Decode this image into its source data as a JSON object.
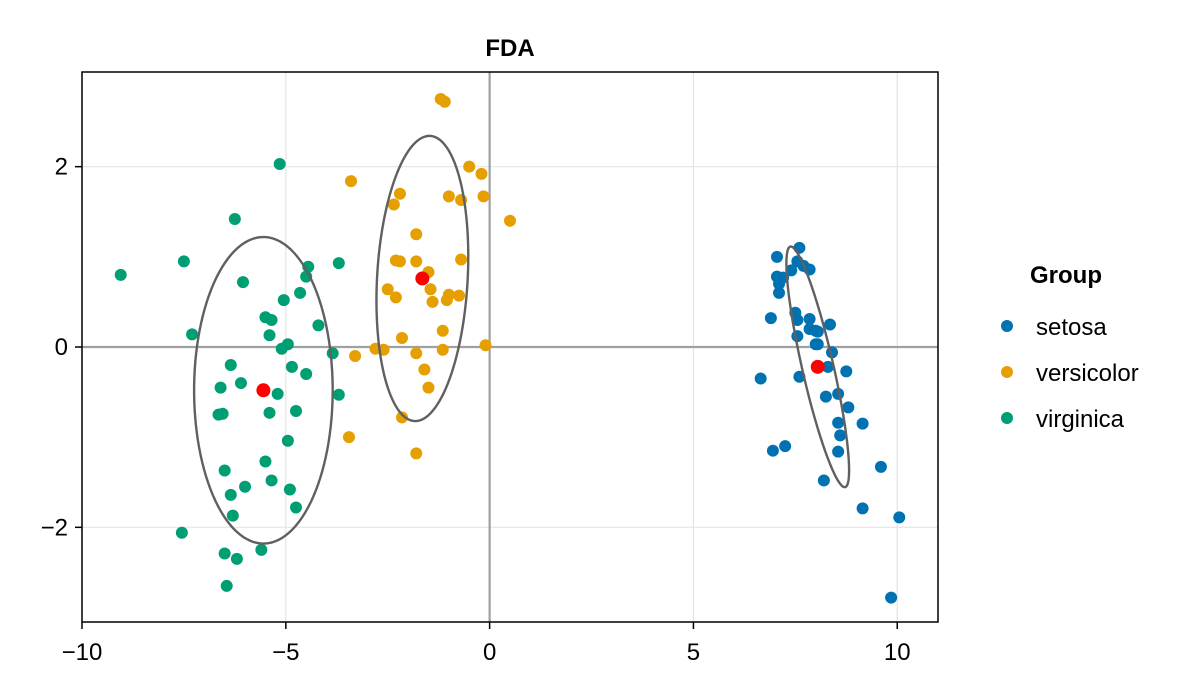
{
  "chart_data": {
    "type": "scatter",
    "title": "FDA",
    "xlabel": "",
    "ylabel": "",
    "xlim": [
      -10,
      11
    ],
    "ylim": [
      -3.05,
      3.05
    ],
    "x_ticks": [
      -10,
      -5,
      0,
      5,
      10
    ],
    "y_ticks": [
      -2,
      0,
      2
    ],
    "grid": true,
    "zero_lines": true,
    "legend": {
      "title": "Group",
      "placement": "right"
    },
    "series": [
      {
        "name": "setosa",
        "color": "#0072B2",
        "points": [
          [
            7.6,
            1.1
          ],
          [
            7.05,
            1.0
          ],
          [
            7.05,
            0.78
          ],
          [
            7.2,
            0.77
          ],
          [
            7.1,
            0.7
          ],
          [
            7.1,
            0.6
          ],
          [
            7.4,
            0.85
          ],
          [
            7.55,
            0.95
          ],
          [
            7.7,
            0.9
          ],
          [
            7.85,
            0.86
          ],
          [
            6.9,
            0.32
          ],
          [
            7.5,
            0.38
          ],
          [
            7.55,
            0.3
          ],
          [
            7.85,
            0.31
          ],
          [
            7.85,
            0.2
          ],
          [
            8.0,
            0.18
          ],
          [
            8.05,
            0.17
          ],
          [
            8.35,
            0.25
          ],
          [
            7.55,
            0.12
          ],
          [
            8.0,
            0.03
          ],
          [
            8.05,
            0.03
          ],
          [
            8.4,
            -0.06
          ],
          [
            8.3,
            -0.22
          ],
          [
            8.75,
            -0.27
          ],
          [
            6.65,
            -0.35
          ],
          [
            7.6,
            -0.33
          ],
          [
            8.25,
            -0.55
          ],
          [
            8.55,
            -0.52
          ],
          [
            8.8,
            -0.67
          ],
          [
            8.55,
            -0.84
          ],
          [
            9.15,
            -0.85
          ],
          [
            8.6,
            -0.98
          ],
          [
            7.25,
            -1.1
          ],
          [
            6.95,
            -1.15
          ],
          [
            8.55,
            -1.16
          ],
          [
            9.6,
            -1.33
          ],
          [
            8.2,
            -1.48
          ],
          [
            9.15,
            -1.79
          ],
          [
            10.05,
            -1.89
          ],
          [
            9.85,
            -2.78
          ]
        ]
      },
      {
        "name": "versicolor",
        "color": "#E69F00",
        "points": [
          [
            -1.2,
            2.75
          ],
          [
            -1.1,
            2.72
          ],
          [
            -0.5,
            2.0
          ],
          [
            -0.2,
            1.92
          ],
          [
            -3.4,
            1.84
          ],
          [
            -2.2,
            1.7
          ],
          [
            -1.0,
            1.67
          ],
          [
            -0.7,
            1.63
          ],
          [
            -0.15,
            1.67
          ],
          [
            0.5,
            1.4
          ],
          [
            -2.35,
            1.58
          ],
          [
            -1.8,
            1.25
          ],
          [
            -2.3,
            0.96
          ],
          [
            -2.2,
            0.95
          ],
          [
            -1.8,
            0.95
          ],
          [
            -0.7,
            0.97
          ],
          [
            -1.5,
            0.83
          ],
          [
            -2.5,
            0.64
          ],
          [
            -1.45,
            0.64
          ],
          [
            -2.3,
            0.55
          ],
          [
            -1.4,
            0.5
          ],
          [
            -1.0,
            0.58
          ],
          [
            -1.05,
            0.52
          ],
          [
            -0.75,
            0.57
          ],
          [
            -1.15,
            0.18
          ],
          [
            -2.15,
            0.1
          ],
          [
            -2.8,
            -0.02
          ],
          [
            -2.6,
            -0.03
          ],
          [
            -1.15,
            -0.03
          ],
          [
            -0.1,
            0.02
          ],
          [
            -3.3,
            -0.1
          ],
          [
            -1.8,
            -0.07
          ],
          [
            -1.6,
            -0.25
          ],
          [
            -1.5,
            -0.45
          ],
          [
            -2.15,
            -0.78
          ],
          [
            -3.45,
            -1.0
          ],
          [
            -1.8,
            -1.18
          ]
        ]
      },
      {
        "name": "virginica",
        "color": "#009E73",
        "points": [
          [
            -5.15,
            2.03
          ],
          [
            -6.25,
            1.42
          ],
          [
            -9.05,
            0.8
          ],
          [
            -7.5,
            0.95
          ],
          [
            -3.7,
            0.93
          ],
          [
            -4.45,
            0.89
          ],
          [
            -4.5,
            0.78
          ],
          [
            -6.05,
            0.72
          ],
          [
            -4.65,
            0.6
          ],
          [
            -5.05,
            0.52
          ],
          [
            -5.5,
            0.33
          ],
          [
            -5.35,
            0.3
          ],
          [
            -4.2,
            0.24
          ],
          [
            -7.3,
            0.14
          ],
          [
            -5.4,
            0.13
          ],
          [
            -4.95,
            0.03
          ],
          [
            -5.1,
            -0.02
          ],
          [
            -3.85,
            -0.07
          ],
          [
            -6.35,
            -0.2
          ],
          [
            -4.85,
            -0.22
          ],
          [
            -4.5,
            -0.3
          ],
          [
            -6.1,
            -0.4
          ],
          [
            -6.6,
            -0.45
          ],
          [
            -5.2,
            -0.52
          ],
          [
            -3.7,
            -0.53
          ],
          [
            -6.65,
            -0.75
          ],
          [
            -6.55,
            -0.74
          ],
          [
            -5.4,
            -0.73
          ],
          [
            -4.75,
            -0.71
          ],
          [
            -4.95,
            -1.04
          ],
          [
            -5.5,
            -1.27
          ],
          [
            -6.5,
            -1.37
          ],
          [
            -5.35,
            -1.48
          ],
          [
            -6.0,
            -1.55
          ],
          [
            -4.9,
            -1.58
          ],
          [
            -6.35,
            -1.64
          ],
          [
            -4.75,
            -1.78
          ],
          [
            -6.3,
            -1.87
          ],
          [
            -7.55,
            -2.06
          ],
          [
            -5.6,
            -2.25
          ],
          [
            -6.5,
            -2.29
          ],
          [
            -6.2,
            -2.35
          ],
          [
            -6.45,
            -2.65
          ]
        ]
      }
    ],
    "centroids": {
      "color": "#FF0000",
      "points": [
        [
          8.05,
          -0.22
        ],
        [
          -1.65,
          0.76
        ],
        [
          -5.55,
          -0.48
        ]
      ]
    },
    "ellipses": {
      "color": "#606060",
      "items": [
        {
          "cx": 8.05,
          "cy": -0.22,
          "rx": 1.5,
          "ry": 0.35,
          "angle": -62
        },
        {
          "cx": -1.65,
          "cy": 0.76,
          "rx": 1.6,
          "ry": 1.1,
          "angle": 78
        },
        {
          "cx": -5.55,
          "cy": -0.48,
          "rx": 1.7,
          "ry": 1.7,
          "angle": 88
        }
      ]
    }
  }
}
